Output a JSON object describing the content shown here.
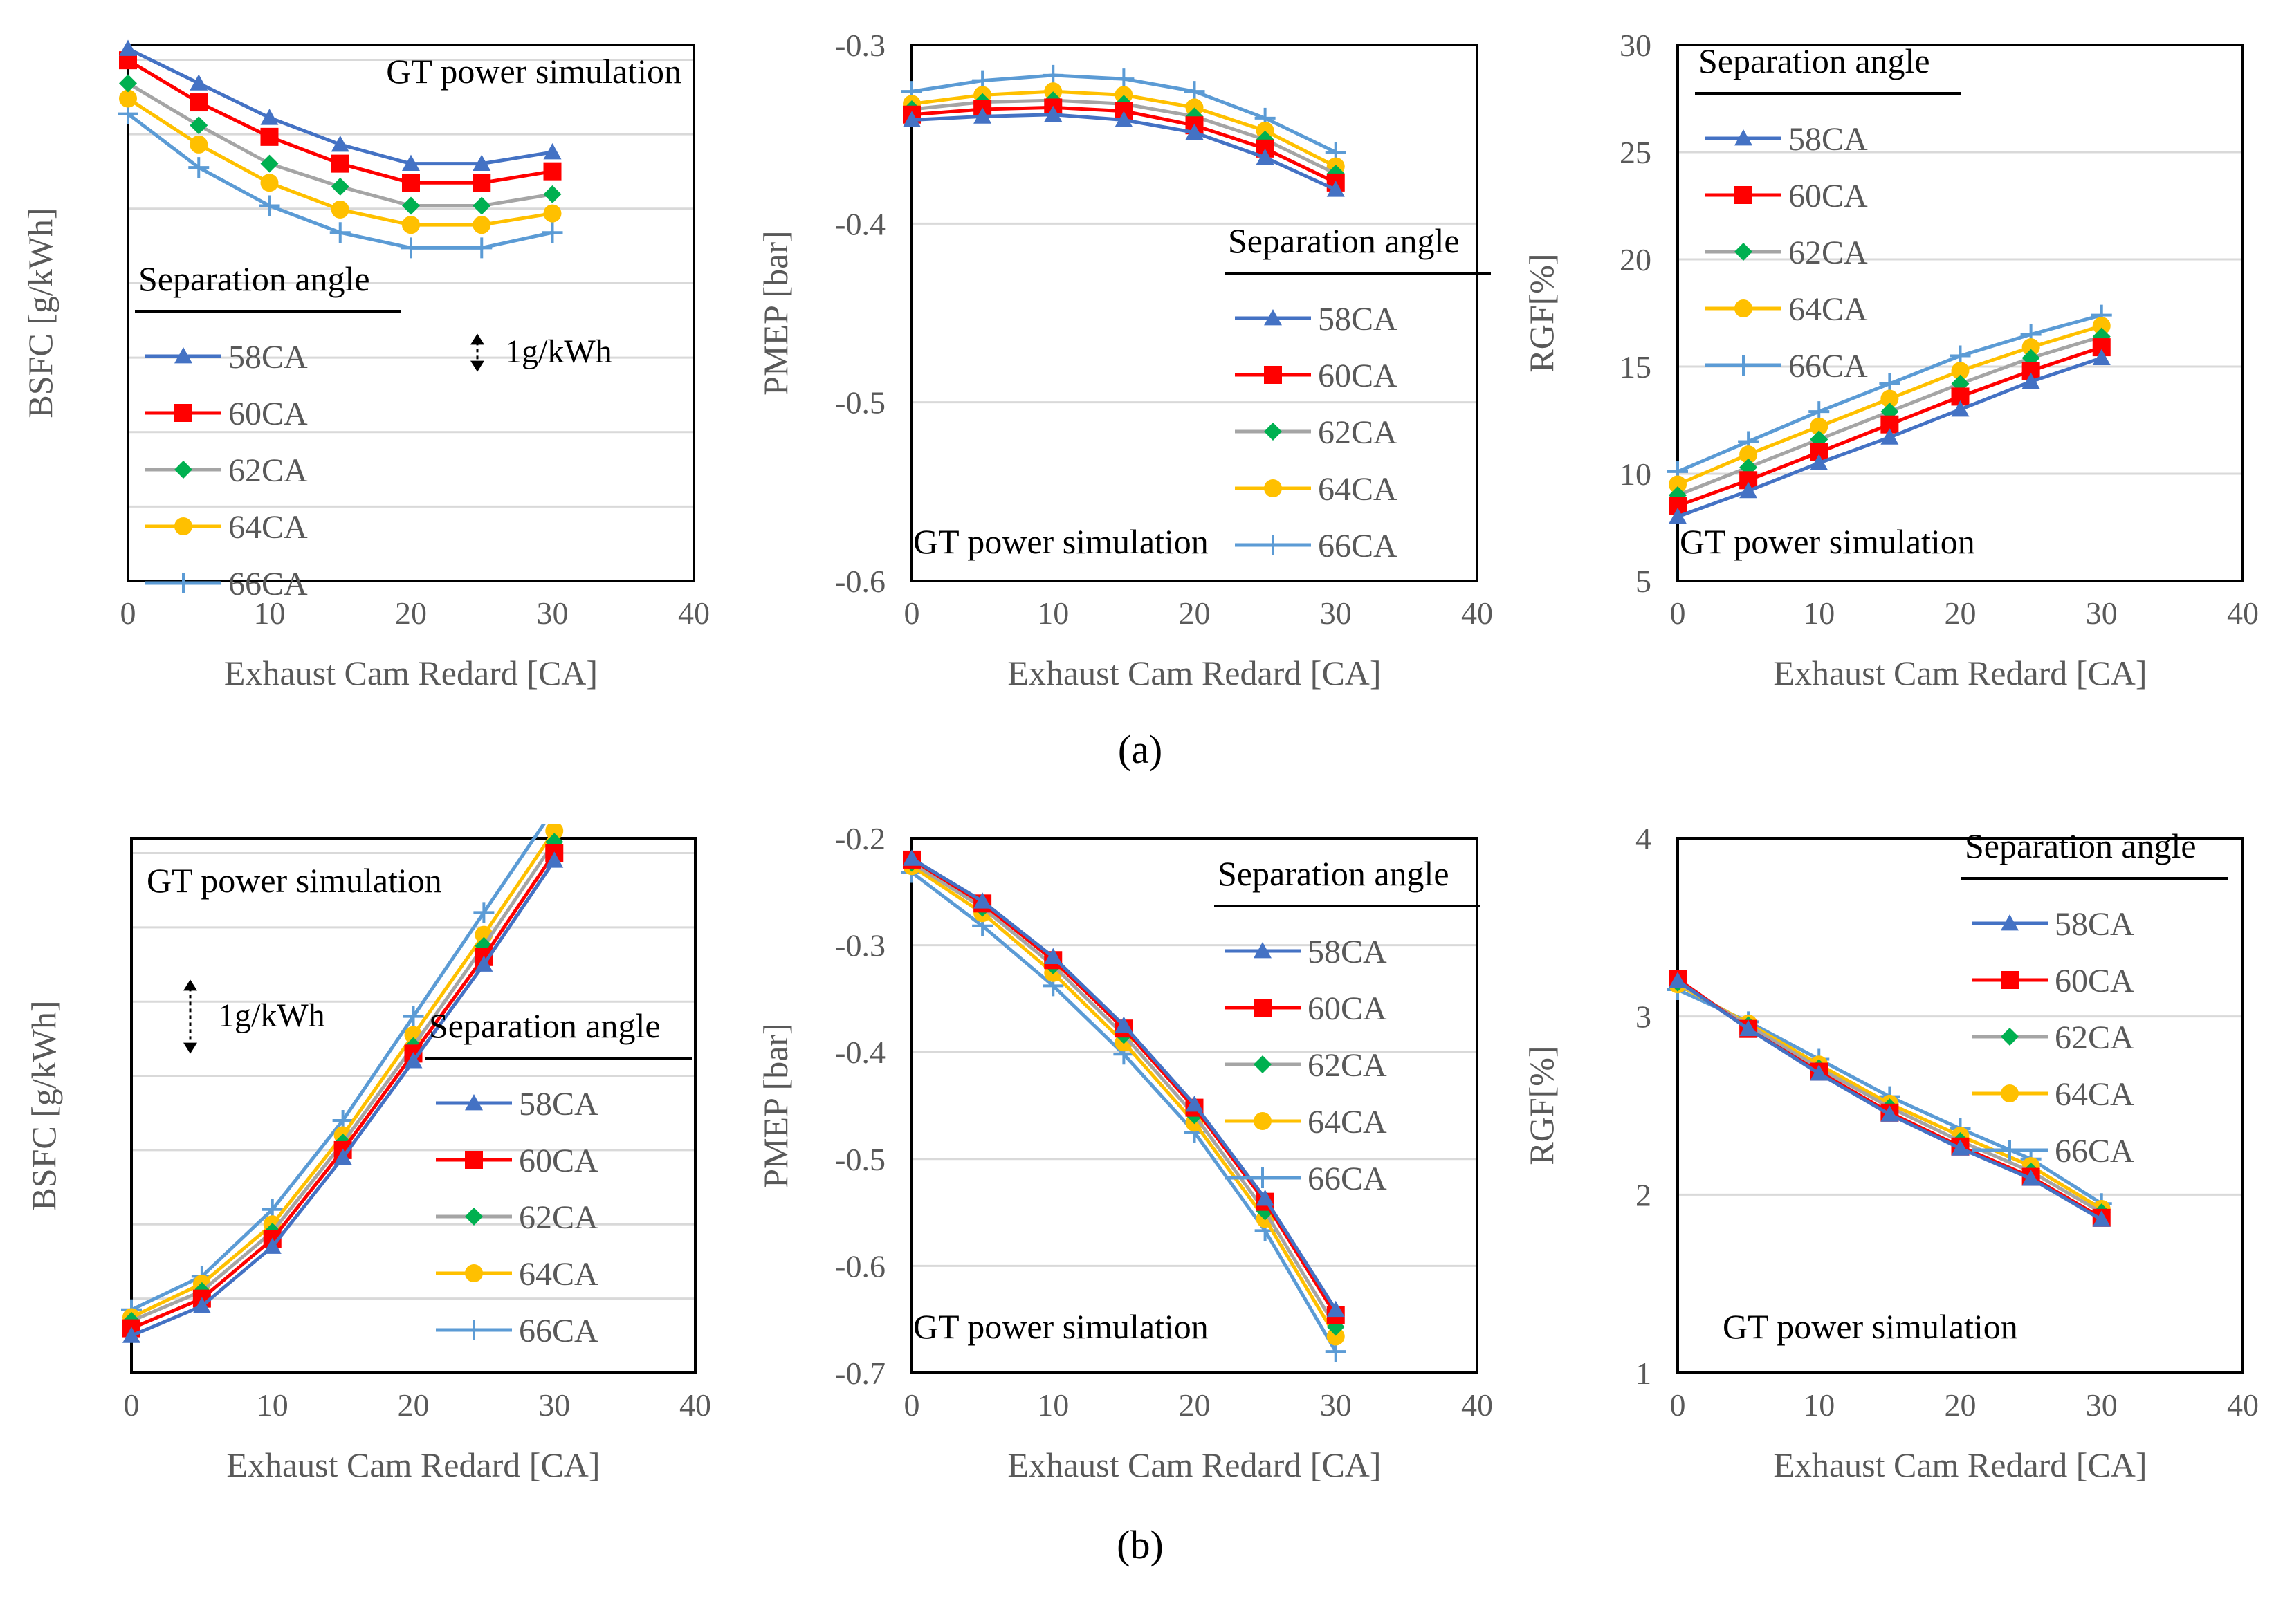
{
  "figure": {
    "caption_a": "(a)",
    "caption_b": "(b)",
    "caption_a_letter": "a",
    "caption_b_letter": "b"
  },
  "colors": {
    "58CA": "#4472C4",
    "60CA": "#FF0000",
    "62CA": "#A5A5A5",
    "64CA": "#FFC000",
    "66CA": "#5B9BD5",
    "marker_62CA": "#00B050",
    "grid": "#D9D9D9",
    "frame": "#000000",
    "text": "#595959"
  },
  "chart_data": [
    {
      "id": "a1",
      "type": "line",
      "panel": "a",
      "title": "GT power simulation",
      "xlabel": "Exhaust Cam Redard [CA]",
      "ylabel": "BSFC [g/kWh]",
      "xlim": [
        0,
        40
      ],
      "ylim": [
        0,
        14
      ],
      "xticks": [
        0,
        10,
        20,
        30,
        40
      ],
      "yticks": [],
      "legend_title": "Separation angle",
      "legend_position": "middle-left",
      "annotation": "1g/kWh",
      "annotation_scale": 1,
      "x": [
        0,
        5,
        10,
        15,
        20,
        25,
        30
      ],
      "series": [
        {
          "name": "58CA",
          "marker": "triangle",
          "values": [
            13.9,
            13.0,
            12.1,
            11.4,
            10.9,
            10.9,
            11.2
          ]
        },
        {
          "name": "60CA",
          "marker": "square",
          "values": [
            13.6,
            12.5,
            11.6,
            10.9,
            10.4,
            10.4,
            10.7
          ]
        },
        {
          "name": "62CA",
          "marker": "diamond",
          "values": [
            13.0,
            11.9,
            10.9,
            10.3,
            9.8,
            9.8,
            10.1
          ]
        },
        {
          "name": "64CA",
          "marker": "circle",
          "values": [
            12.6,
            11.4,
            10.4,
            9.7,
            9.3,
            9.3,
            9.6
          ]
        },
        {
          "name": "66CA",
          "marker": "plus",
          "values": [
            12.2,
            10.8,
            9.8,
            9.1,
            8.7,
            8.7,
            9.1
          ]
        }
      ]
    },
    {
      "id": "a2",
      "type": "line",
      "panel": "a",
      "title": "GT power simulation",
      "xlabel": "Exhaust Cam Redard [CA]",
      "ylabel": "PMEP [bar]",
      "xlim": [
        0,
        40
      ],
      "ylim": [
        -0.6,
        -0.3
      ],
      "xticks": [
        0,
        10,
        20,
        30,
        40
      ],
      "yticks": [
        -0.6,
        -0.5,
        -0.4,
        -0.3
      ],
      "ytick_labels": [
        "-0.6",
        "-0.5",
        "-0.4",
        "-0.3"
      ],
      "legend_title": "Separation angle",
      "legend_position": "right",
      "x": [
        0,
        5,
        10,
        15,
        20,
        25,
        30
      ],
      "series": [
        {
          "name": "58CA",
          "marker": "triangle",
          "values": [
            -0.342,
            -0.34,
            -0.339,
            -0.342,
            -0.349,
            -0.363,
            -0.381
          ]
        },
        {
          "name": "60CA",
          "marker": "square",
          "values": [
            -0.339,
            -0.336,
            -0.335,
            -0.337,
            -0.345,
            -0.358,
            -0.377
          ]
        },
        {
          "name": "62CA",
          "marker": "diamond",
          "values": [
            -0.336,
            -0.332,
            -0.331,
            -0.333,
            -0.34,
            -0.353,
            -0.372
          ]
        },
        {
          "name": "64CA",
          "marker": "circle",
          "values": [
            -0.333,
            -0.328,
            -0.326,
            -0.328,
            -0.335,
            -0.348,
            -0.368
          ]
        },
        {
          "name": "66CA",
          "marker": "plus",
          "values": [
            -0.326,
            -0.32,
            -0.317,
            -0.319,
            -0.326,
            -0.341,
            -0.36
          ]
        }
      ]
    },
    {
      "id": "a3",
      "type": "line",
      "panel": "a",
      "title": "GT power simulation",
      "xlabel": "Exhaust Cam Redard [CA]",
      "ylabel": "RGF[%]",
      "xlim": [
        0,
        40
      ],
      "ylim": [
        5,
        30
      ],
      "xticks": [
        0,
        10,
        20,
        30,
        40
      ],
      "yticks": [
        5,
        10,
        15,
        20,
        25,
        30
      ],
      "ytick_labels": [
        "5",
        "10",
        "15",
        "20",
        "25",
        "30"
      ],
      "legend_title": "Separation angle",
      "legend_position": "top-left",
      "x": [
        0,
        5,
        10,
        15,
        20,
        25,
        30
      ],
      "series": [
        {
          "name": "58CA",
          "marker": "triangle",
          "values": [
            8.0,
            9.2,
            10.5,
            11.7,
            13.0,
            14.3,
            15.4
          ]
        },
        {
          "name": "60CA",
          "marker": "square",
          "values": [
            8.5,
            9.7,
            11.0,
            12.3,
            13.6,
            14.8,
            15.9
          ]
        },
        {
          "name": "62CA",
          "marker": "diamond",
          "values": [
            9.0,
            10.3,
            11.6,
            12.9,
            14.2,
            15.4,
            16.4
          ]
        },
        {
          "name": "64CA",
          "marker": "circle",
          "values": [
            9.5,
            10.9,
            12.2,
            13.5,
            14.8,
            15.9,
            16.9
          ]
        },
        {
          "name": "66CA",
          "marker": "plus",
          "values": [
            10.1,
            11.5,
            12.9,
            14.2,
            15.5,
            16.5,
            17.4
          ]
        }
      ]
    },
    {
      "id": "b1",
      "type": "line",
      "panel": "b",
      "title": "GT power simulation",
      "xlabel": "Exhaust Cam Redard [CA]",
      "ylabel": "BSFC [g/kWh]",
      "xlim": [
        0,
        40
      ],
      "ylim": [
        -0.5,
        6.7
      ],
      "xticks": [
        0,
        10,
        20,
        30,
        40
      ],
      "yticks": [],
      "legend_title": "Separation angle",
      "legend_position": "right",
      "annotation": "1g/kWh",
      "annotation_scale": 1,
      "x": [
        0,
        5,
        10,
        15,
        20,
        25,
        30
      ],
      "series": [
        {
          "name": "58CA",
          "marker": "triangle",
          "values": [
            0.0,
            0.4,
            1.2,
            2.4,
            3.7,
            5.0,
            6.4
          ]
        },
        {
          "name": "60CA",
          "marker": "square",
          "values": [
            0.1,
            0.5,
            1.3,
            2.5,
            3.8,
            5.1,
            6.5
          ]
        },
        {
          "name": "62CA",
          "marker": "diamond",
          "values": [
            0.2,
            0.6,
            1.4,
            2.6,
            3.9,
            5.25,
            6.65
          ]
        },
        {
          "name": "64CA",
          "marker": "circle",
          "values": [
            0.25,
            0.7,
            1.5,
            2.7,
            4.05,
            5.4,
            6.8
          ]
        },
        {
          "name": "66CA",
          "marker": "plus",
          "values": [
            0.35,
            0.8,
            1.7,
            2.9,
            4.3,
            5.7,
            7.1
          ]
        }
      ]
    },
    {
      "id": "b2",
      "type": "line",
      "panel": "b",
      "title": "GT power simulation",
      "xlabel": "Exhaust Cam Redard [CA]",
      "ylabel": "PMEP [bar]",
      "xlim": [
        0,
        40
      ],
      "ylim": [
        -0.7,
        -0.2
      ],
      "xticks": [
        0,
        10,
        20,
        30,
        40
      ],
      "yticks": [
        -0.7,
        -0.6,
        -0.5,
        -0.4,
        -0.3,
        -0.2
      ],
      "ytick_labels": [
        "-0.7",
        "-0.6",
        "-0.5",
        "-0.4",
        "-0.3",
        "-0.2"
      ],
      "legend_title": "Separation angle",
      "legend_position": "top-right",
      "x": [
        0,
        5,
        10,
        15,
        20,
        25,
        30
      ],
      "series": [
        {
          "name": "58CA",
          "marker": "triangle",
          "values": [
            -0.219,
            -0.259,
            -0.311,
            -0.375,
            -0.449,
            -0.537,
            -0.641
          ]
        },
        {
          "name": "60CA",
          "marker": "square",
          "values": [
            -0.22,
            -0.261,
            -0.314,
            -0.378,
            -0.452,
            -0.54,
            -0.646
          ]
        },
        {
          "name": "62CA",
          "marker": "diamond",
          "values": [
            -0.223,
            -0.265,
            -0.319,
            -0.384,
            -0.459,
            -0.549,
            -0.657
          ]
        },
        {
          "name": "64CA",
          "marker": "circle",
          "values": [
            -0.226,
            -0.27,
            -0.326,
            -0.391,
            -0.466,
            -0.556,
            -0.666
          ]
        },
        {
          "name": "66CA",
          "marker": "plus",
          "values": [
            -0.232,
            -0.282,
            -0.338,
            -0.402,
            -0.475,
            -0.567,
            -0.68
          ]
        }
      ]
    },
    {
      "id": "b3",
      "type": "line",
      "panel": "b",
      "title": "GT power simulation",
      "xlabel": "Exhaust Cam Redard [CA]",
      "ylabel": "RGF[%]",
      "xlim": [
        0,
        40
      ],
      "ylim": [
        1,
        4
      ],
      "xticks": [
        0,
        10,
        20,
        30,
        40
      ],
      "yticks": [
        1,
        2,
        3,
        4
      ],
      "ytick_labels": [
        "1",
        "2",
        "3",
        "4"
      ],
      "legend_title": "Separation angle",
      "legend_position": "top-right",
      "x": [
        0,
        5,
        10,
        15,
        20,
        25,
        30
      ],
      "series": [
        {
          "name": "58CA",
          "marker": "triangle",
          "values": [
            3.2,
            2.93,
            2.68,
            2.45,
            2.26,
            2.09,
            1.86
          ]
        },
        {
          "name": "60CA",
          "marker": "square",
          "values": [
            3.21,
            2.93,
            2.69,
            2.46,
            2.27,
            2.1,
            1.87
          ]
        },
        {
          "name": "62CA",
          "marker": "diamond",
          "values": [
            3.19,
            2.95,
            2.71,
            2.49,
            2.3,
            2.13,
            1.9
          ]
        },
        {
          "name": "64CA",
          "marker": "circle",
          "values": [
            3.18,
            2.96,
            2.73,
            2.51,
            2.33,
            2.16,
            1.92
          ]
        },
        {
          "name": "66CA",
          "marker": "plus",
          "values": [
            3.15,
            2.97,
            2.76,
            2.55,
            2.37,
            2.2,
            1.95
          ]
        }
      ]
    }
  ]
}
